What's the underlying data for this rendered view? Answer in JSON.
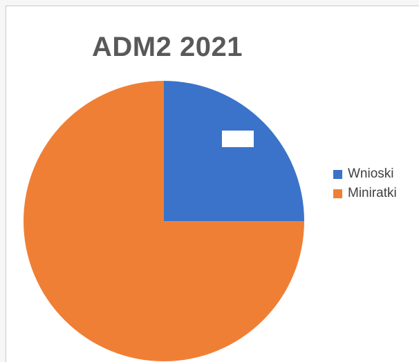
{
  "chart_data": {
    "type": "pie",
    "title": "ADM2 2021",
    "categories": [
      "Wnioski",
      "Miniratki"
    ],
    "values": [
      25,
      75
    ],
    "colors": [
      "#3a73c9",
      "#f07f36"
    ],
    "data_labels": [
      "",
      ""
    ],
    "legend_position": "right"
  }
}
